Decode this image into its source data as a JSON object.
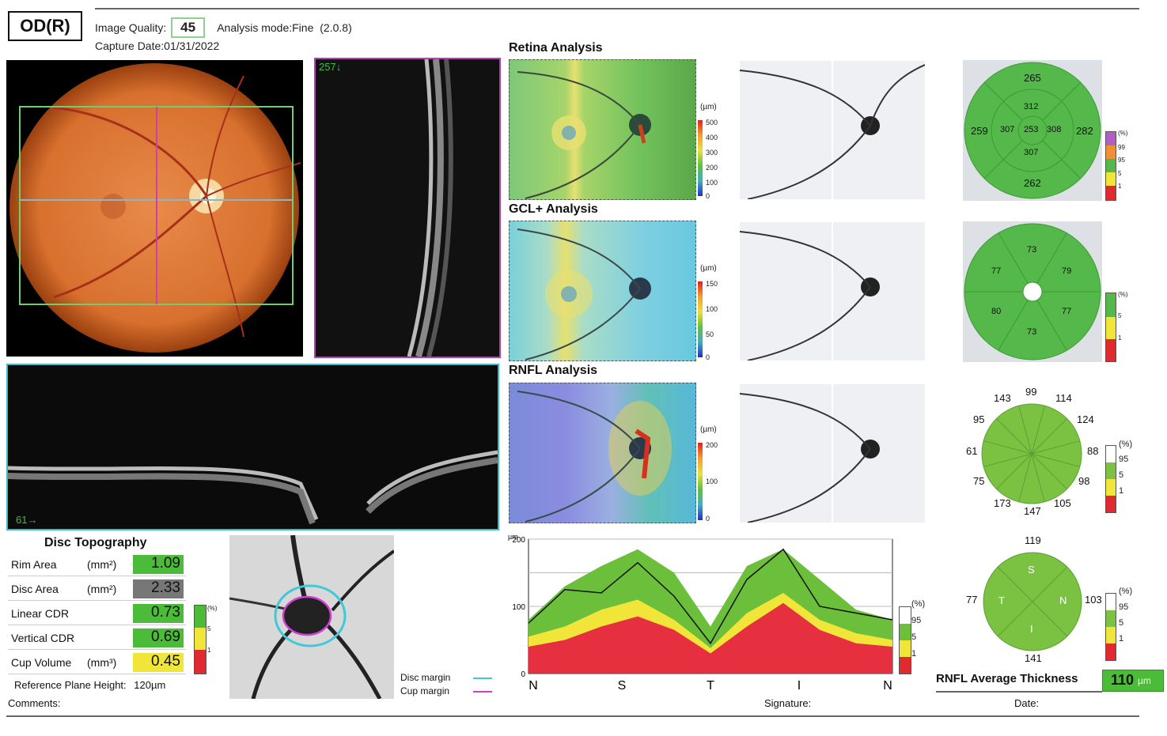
{
  "header": {
    "eye": "OD(R)",
    "image_quality_label": "Image Quality:",
    "image_quality_value": "45",
    "analysis_mode": "Analysis mode:Fine",
    "analysis_version": "(2.0.8)",
    "capture_date": "Capture Date:01/31/2022"
  },
  "scans": {
    "vertical_bscan_label": "257↓",
    "horizontal_bscan_label": "61→"
  },
  "retina": {
    "title": "Retina Analysis",
    "unit": "(µm)",
    "scale": [
      "500",
      "400",
      "300",
      "200",
      "100",
      "0"
    ],
    "sectors": {
      "superior": "265",
      "inner_superior": "312",
      "temporal": "259",
      "inner_temporal": "307",
      "center": "253",
      "inner_nasal": "308",
      "nasal": "282",
      "inner_inferior": "307",
      "inferior": "262"
    },
    "pct_legend": [
      "(%)",
      "99",
      "95",
      "5",
      "1"
    ]
  },
  "gcl": {
    "title": "GCL+ Analysis",
    "unit": "(µm)",
    "scale": [
      "150",
      "100",
      "50",
      "0"
    ],
    "sectors": {
      "top": "73",
      "upper_left": "77",
      "upper_right": "79",
      "lower_left": "80",
      "lower_right": "77",
      "bottom": "73"
    },
    "pct_legend": [
      "(%)",
      "5",
      "1"
    ]
  },
  "rnfl": {
    "title": "RNFL Analysis",
    "unit": "(µm)",
    "scale": [
      "200",
      "100",
      "0"
    ],
    "clock": [
      "99",
      "114",
      "124",
      "88",
      "98",
      "105",
      "147",
      "173",
      "75",
      "61",
      "95",
      "143"
    ],
    "pct_legend": [
      "(%)",
      "95",
      "5",
      "1"
    ],
    "quadrant": {
      "S": "S",
      "N": "N",
      "I": "I",
      "T": "T",
      "val_s": "119",
      "val_n": "103",
      "val_i": "141",
      "val_t": "77"
    },
    "pct_legend2": [
      "(%)",
      "95",
      "5",
      "1"
    ],
    "avg_label": "RNFL Average Thickness",
    "avg_value": "110",
    "avg_unit": "µm"
  },
  "disc": {
    "title": "Disc Topography",
    "rows": [
      {
        "label": "Rim Area",
        "unit": "(mm²)",
        "value": "1.09",
        "color": "#4cbb3a"
      },
      {
        "label": "Disc Area",
        "unit": "(mm²)",
        "value": "2.33",
        "color": "#777777"
      },
      {
        "label": "Linear CDR",
        "unit": "",
        "value": "0.73",
        "color": "#4cbb3a"
      },
      {
        "label": "Vertical CDR",
        "unit": "",
        "value": "0.69",
        "color": "#4cbb3a"
      },
      {
        "label": "Cup Volume",
        "unit": "(mm³)",
        "value": "0.45",
        "color": "#f2e53a"
      }
    ],
    "ref_plane": "Reference Plane Height:",
    "ref_plane_value": "120µm",
    "legend_pct": [
      "(%)",
      "5",
      "1"
    ],
    "disc_margin": "Disc margin",
    "cup_margin": "Cup margin"
  },
  "tsnit": {
    "y_unit": "µm",
    "y_ticks": [
      "200",
      "100",
      "0"
    ],
    "x_ticks": [
      "N",
      "S",
      "T",
      "I",
      "N"
    ],
    "legend": [
      "(%)",
      "95",
      "5",
      "1"
    ]
  },
  "footer": {
    "comments": "Comments:",
    "signature": "Signature:",
    "date": "Date:"
  },
  "chart_data": {
    "type": "area",
    "title": "",
    "xlabel": "",
    "ylabel": "µm",
    "ylim": [
      0,
      200
    ],
    "categories": [
      "N",
      "S",
      "T",
      "I",
      "N"
    ],
    "x": [
      0,
      10,
      20,
      30,
      40,
      50,
      60,
      70,
      80,
      90,
      100
    ],
    "series": [
      {
        "name": "95",
        "values": [
          80,
          130,
          160,
          185,
          150,
          70,
          160,
          185,
          140,
          95,
          80
        ]
      },
      {
        "name": "5",
        "values": [
          55,
          70,
          95,
          110,
          80,
          38,
          90,
          120,
          80,
          60,
          50
        ]
      },
      {
        "name": "1",
        "values": [
          40,
          50,
          70,
          85,
          65,
          30,
          70,
          105,
          65,
          45,
          40
        ]
      },
      {
        "name": "",
        "values": [
          75,
          125,
          120,
          165,
          115,
          45,
          140,
          185,
          100,
          90,
          80
        ]
      }
    ]
  }
}
